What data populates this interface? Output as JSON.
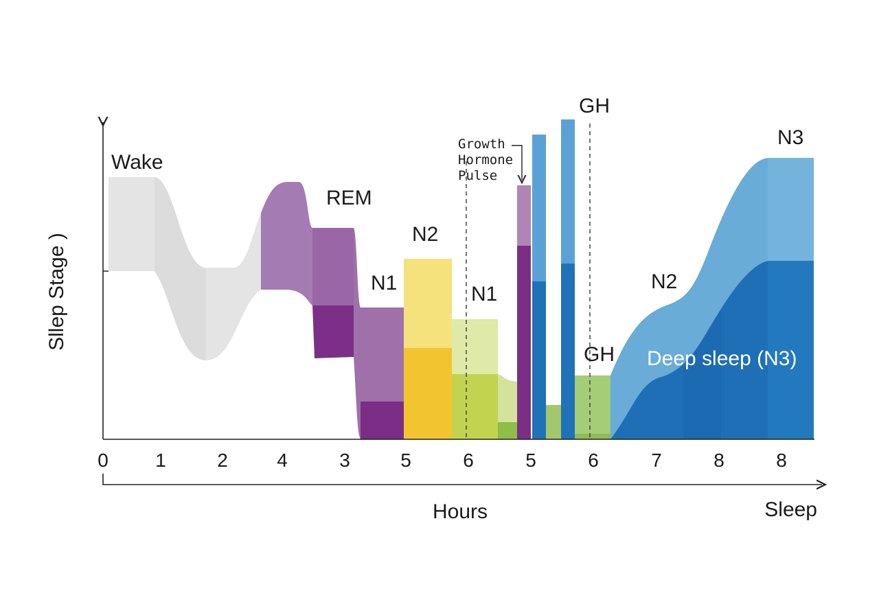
{
  "chart_data": {
    "type": "area",
    "xlabel": "Hours",
    "xlabel_secondary": "Sleep",
    "ylabel": "Sllep Stage )",
    "x_tick_labels": [
      "0",
      "1",
      "2",
      "4",
      "3",
      "5",
      "6",
      "5",
      "6",
      "7",
      "8",
      "8"
    ],
    "stage_labels": [
      "Wake",
      "REM",
      "N1",
      "N2",
      "N1",
      "N2",
      "N3"
    ],
    "annotations": {
      "growth_hormone_pulse": [
        "Growth",
        "Hormone",
        "Pulse"
      ],
      "gh_top": "GH",
      "gh_mid": "GH",
      "deep_sleep": "Deep sleep (N3)"
    },
    "segments": [
      {
        "stage": "Wake",
        "color": "#e0e0e0"
      },
      {
        "stage": "REM",
        "color": "#a277b3"
      },
      {
        "stage": "N1",
        "color": "#a070ab"
      },
      {
        "stage": "N2",
        "color": "#f5c430"
      },
      {
        "stage": "N1",
        "color": "#c5d65a"
      },
      {
        "stage": "GH",
        "color": "#4a90c8"
      },
      {
        "stage": "N2",
        "color": "#8fc06a"
      },
      {
        "stage": "N3",
        "color": "#1e6fb5"
      }
    ],
    "grid": false,
    "legend": "none"
  }
}
